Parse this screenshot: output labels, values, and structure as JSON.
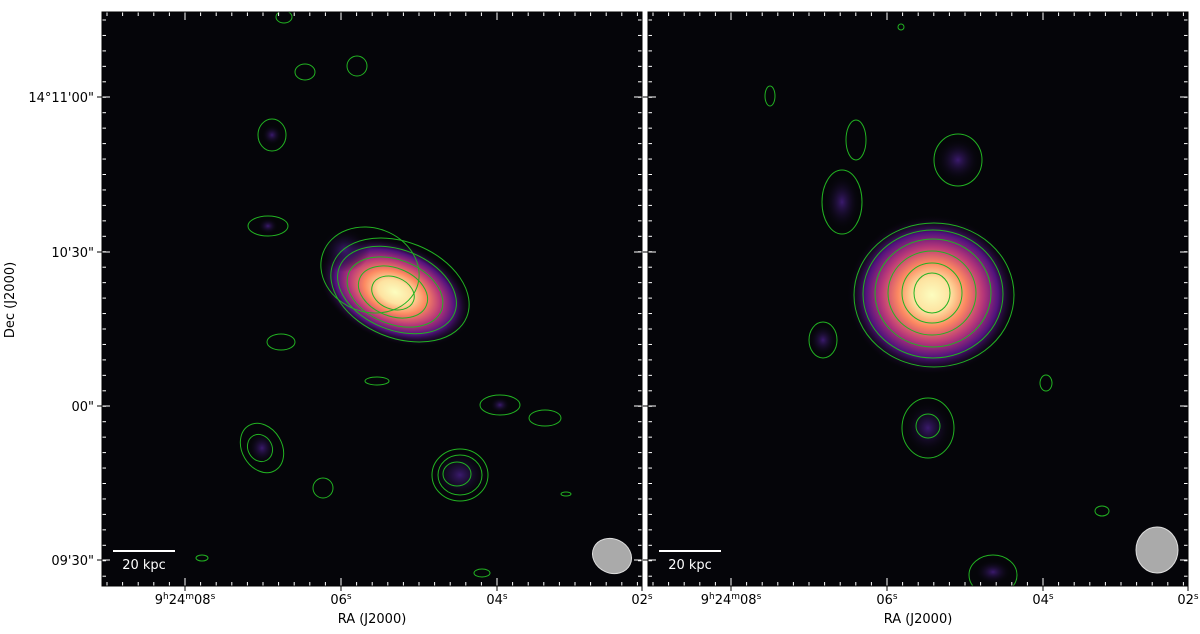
{
  "y_axis_label": "Dec (J2000)",
  "y_ticks": [
    "14°11'00\"",
    "10'30\"",
    "00\"",
    "09'30\""
  ],
  "panels": [
    {
      "x_axis_label": "RA (J2000)",
      "scale_bar": "20 kpc",
      "x_ticks": [
        [
          "9",
          "h",
          "24",
          "m",
          "08",
          "s"
        ],
        [
          "06",
          "s"
        ],
        [
          "04",
          "s"
        ],
        [
          "02",
          "s"
        ]
      ]
    },
    {
      "x_axis_label": "RA (J2000)",
      "scale_bar": "20 kpc",
      "x_ticks": [
        [
          "9",
          "h",
          "24",
          "m",
          "08",
          "s"
        ],
        [
          "06",
          "s"
        ],
        [
          "04",
          "s"
        ],
        [
          "02",
          "s"
        ]
      ]
    }
  ]
}
